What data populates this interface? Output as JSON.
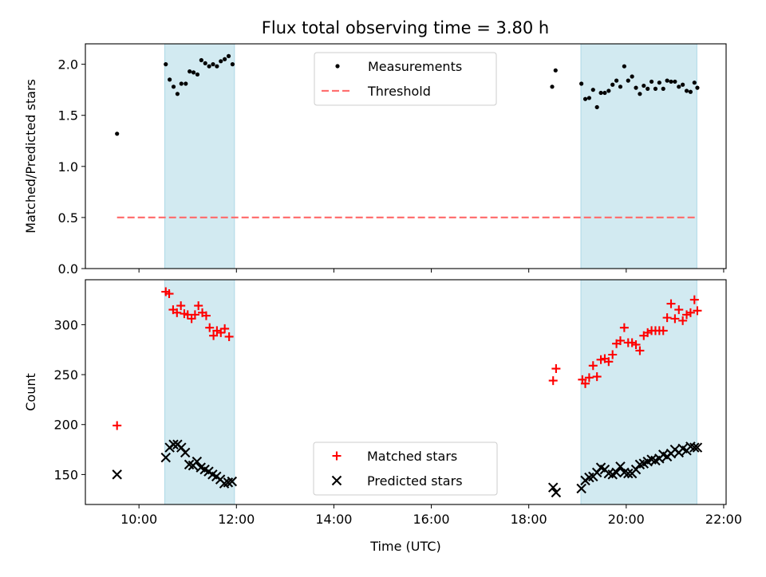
{
  "figure_title": "Flux total observing time = 3.80 h",
  "colors": {
    "span": "#add8e6",
    "measurements": "#000000",
    "threshold": "#ff7070",
    "matched": "#ff0000",
    "predicted": "#000000"
  },
  "chart_data": [
    {
      "type": "scatter",
      "title": "Flux total observing time = 3.80 h",
      "xlabel": "",
      "ylabel": "Matched/Predicted stars",
      "xlim": [
        8.9,
        22.05
      ],
      "ylim": [
        0,
        2.2
      ],
      "yticks": [
        0.0,
        0.5,
        1.0,
        1.5,
        2.0
      ],
      "ytick_labels": [
        "0.0",
        "0.5",
        "1.0",
        "1.5",
        "2.0"
      ],
      "xticks": [
        10,
        12,
        14,
        16,
        18,
        20,
        22
      ],
      "xtick_labels_shown": false,
      "shaded_spans": [
        [
          10.53,
          11.96
        ],
        [
          19.07,
          21.45
        ]
      ],
      "legend": {
        "position": "upper center",
        "entries": [
          "Measurements",
          "Threshold"
        ]
      },
      "series": [
        {
          "name": "Measurements",
          "marker": "dot",
          "points": [
            [
              9.55,
              1.32
            ],
            [
              10.55,
              2.0
            ],
            [
              10.63,
              1.85
            ],
            [
              10.71,
              1.78
            ],
            [
              10.79,
              1.71
            ],
            [
              10.87,
              1.81
            ],
            [
              10.96,
              1.81
            ],
            [
              11.04,
              1.93
            ],
            [
              11.12,
              1.92
            ],
            [
              11.2,
              1.9
            ],
            [
              11.28,
              2.04
            ],
            [
              11.36,
              2.01
            ],
            [
              11.44,
              1.98
            ],
            [
              11.52,
              2.0
            ],
            [
              11.6,
              1.98
            ],
            [
              11.68,
              2.03
            ],
            [
              11.76,
              2.05
            ],
            [
              11.84,
              2.08
            ],
            [
              11.92,
              2.0
            ],
            [
              18.48,
              1.78
            ],
            [
              18.55,
              1.94
            ],
            [
              19.08,
              1.81
            ],
            [
              19.16,
              1.66
            ],
            [
              19.24,
              1.67
            ],
            [
              19.32,
              1.75
            ],
            [
              19.4,
              1.58
            ],
            [
              19.48,
              1.72
            ],
            [
              19.56,
              1.72
            ],
            [
              19.64,
              1.74
            ],
            [
              19.72,
              1.8
            ],
            [
              19.8,
              1.84
            ],
            [
              19.88,
              1.78
            ],
            [
              19.96,
              1.98
            ],
            [
              20.04,
              1.84
            ],
            [
              20.12,
              1.88
            ],
            [
              20.2,
              1.77
            ],
            [
              20.28,
              1.71
            ],
            [
              20.36,
              1.79
            ],
            [
              20.44,
              1.76
            ],
            [
              20.52,
              1.83
            ],
            [
              20.6,
              1.76
            ],
            [
              20.68,
              1.82
            ],
            [
              20.76,
              1.76
            ],
            [
              20.84,
              1.84
            ],
            [
              20.92,
              1.83
            ],
            [
              21.0,
              1.83
            ],
            [
              21.08,
              1.78
            ],
            [
              21.16,
              1.8
            ],
            [
              21.24,
              1.74
            ],
            [
              21.32,
              1.73
            ],
            [
              21.4,
              1.82
            ],
            [
              21.46,
              1.77
            ]
          ]
        },
        {
          "name": "Threshold",
          "marker": "dashed-line",
          "points": [
            [
              9.55,
              0.5
            ],
            [
              21.46,
              0.5
            ]
          ]
        }
      ]
    },
    {
      "type": "scatter",
      "title": "",
      "xlabel": "Time (UTC)",
      "ylabel": "Count",
      "xlim": [
        8.9,
        22.05
      ],
      "ylim": [
        120,
        345
      ],
      "yticks": [
        150,
        200,
        250,
        300
      ],
      "ytick_labels": [
        "150",
        "200",
        "250",
        "300"
      ],
      "xticks": [
        10,
        12,
        14,
        16,
        18,
        20,
        22
      ],
      "xtick_labels": [
        "10:00",
        "12:00",
        "14:00",
        "16:00",
        "18:00",
        "20:00",
        "22:00"
      ],
      "shaded_spans": [
        [
          10.53,
          11.96
        ],
        [
          19.07,
          21.45
        ]
      ],
      "legend": {
        "position": "lower center",
        "entries": [
          "Matched stars",
          "Predicted stars"
        ]
      },
      "series": [
        {
          "name": "Matched stars",
          "marker": "plus",
          "points": [
            [
              9.55,
              199
            ],
            [
              10.55,
              333
            ],
            [
              10.62,
              331
            ],
            [
              10.7,
              315
            ],
            [
              10.78,
              312
            ],
            [
              10.86,
              319
            ],
            [
              10.93,
              311
            ],
            [
              11.0,
              310
            ],
            [
              11.08,
              306
            ],
            [
              11.15,
              310
            ],
            [
              11.22,
              319
            ],
            [
              11.3,
              312
            ],
            [
              11.38,
              309
            ],
            [
              11.45,
              297
            ],
            [
              11.53,
              289
            ],
            [
              11.6,
              294
            ],
            [
              11.68,
              292
            ],
            [
              11.76,
              296
            ],
            [
              11.85,
              288
            ],
            [
              18.5,
              244
            ],
            [
              18.56,
              256
            ],
            [
              19.1,
              245
            ],
            [
              19.16,
              241
            ],
            [
              19.24,
              247
            ],
            [
              19.32,
              259
            ],
            [
              19.4,
              248
            ],
            [
              19.48,
              265
            ],
            [
              19.56,
              266
            ],
            [
              19.64,
              263
            ],
            [
              19.72,
              270
            ],
            [
              19.8,
              281
            ],
            [
              19.88,
              284
            ],
            [
              19.96,
              297
            ],
            [
              20.04,
              282
            ],
            [
              20.12,
              282
            ],
            [
              20.2,
              280
            ],
            [
              20.28,
              274
            ],
            [
              20.36,
              289
            ],
            [
              20.44,
              292
            ],
            [
              20.52,
              294
            ],
            [
              20.6,
              294
            ],
            [
              20.68,
              294
            ],
            [
              20.76,
              294
            ],
            [
              20.84,
              307
            ],
            [
              20.92,
              321
            ],
            [
              21.0,
              306
            ],
            [
              21.08,
              315
            ],
            [
              21.16,
              304
            ],
            [
              21.24,
              310
            ],
            [
              21.32,
              312
            ],
            [
              21.4,
              325
            ],
            [
              21.46,
              314
            ]
          ]
        },
        {
          "name": "Predicted stars",
          "marker": "x",
          "points": [
            [
              9.55,
              150
            ],
            [
              10.55,
              167
            ],
            [
              10.63,
              177
            ],
            [
              10.71,
              180
            ],
            [
              10.79,
              180
            ],
            [
              10.87,
              177
            ],
            [
              10.95,
              172
            ],
            [
              11.03,
              160
            ],
            [
              11.11,
              159
            ],
            [
              11.19,
              163
            ],
            [
              11.27,
              157
            ],
            [
              11.35,
              155
            ],
            [
              11.43,
              153
            ],
            [
              11.51,
              150
            ],
            [
              11.59,
              148
            ],
            [
              11.67,
              145
            ],
            [
              11.75,
              141
            ],
            [
              11.83,
              142
            ],
            [
              11.91,
              143
            ],
            [
              18.5,
              137
            ],
            [
              18.56,
              132
            ],
            [
              19.08,
              136
            ],
            [
              19.16,
              144
            ],
            [
              19.24,
              147
            ],
            [
              19.32,
              148
            ],
            [
              19.4,
              152
            ],
            [
              19.48,
              157
            ],
            [
              19.56,
              155
            ],
            [
              19.64,
              151
            ],
            [
              19.72,
              150
            ],
            [
              19.8,
              152
            ],
            [
              19.88,
              158
            ],
            [
              19.96,
              152
            ],
            [
              20.04,
              151
            ],
            [
              20.12,
              151
            ],
            [
              20.2,
              155
            ],
            [
              20.28,
              160
            ],
            [
              20.36,
              161
            ],
            [
              20.44,
              163
            ],
            [
              20.52,
              165
            ],
            [
              20.6,
              164
            ],
            [
              20.68,
              166
            ],
            [
              20.76,
              170
            ],
            [
              20.84,
              168
            ],
            [
              20.92,
              171
            ],
            [
              21.0,
              175
            ],
            [
              21.08,
              172
            ],
            [
              21.16,
              176
            ],
            [
              21.24,
              174
            ],
            [
              21.32,
              178
            ],
            [
              21.4,
              177
            ],
            [
              21.46,
              177
            ]
          ]
        }
      ]
    }
  ]
}
